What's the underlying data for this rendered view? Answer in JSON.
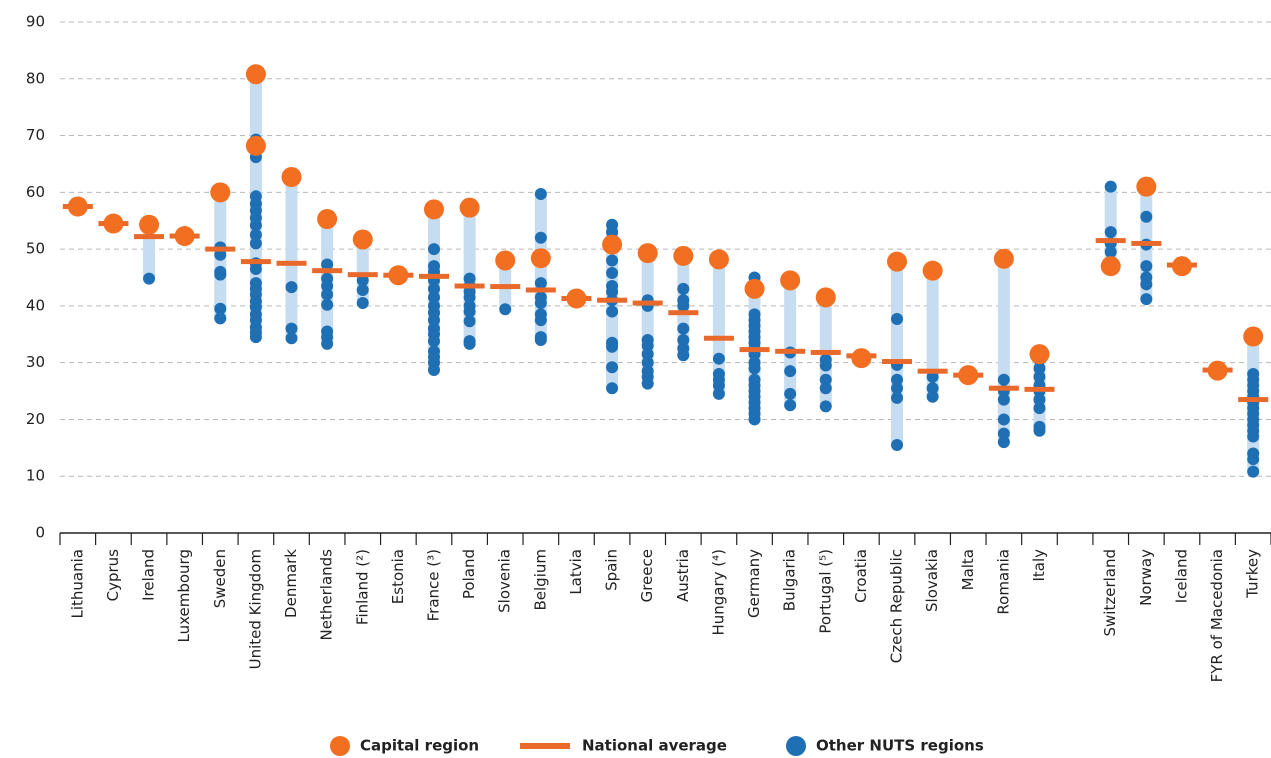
{
  "chart_data": {
    "type": "range-dot",
    "categories": [
      "Lithuania",
      "Cyprus",
      "Ireland",
      "Luxembourg",
      "Sweden",
      "United Kingdom",
      "Denmark",
      "Netherlands",
      "Finland (²)",
      "Estonia",
      "France (³)",
      "Poland",
      "Slovenia",
      "Belgium",
      "Latvia",
      "Spain",
      "Greece",
      "Austria",
      "Hungary (⁴)",
      "Germany",
      "Bulgaria",
      "Portugal (⁵)",
      "Croatia",
      "Czech Republic",
      "Slovakia",
      "Malta",
      "Romania",
      "Italy",
      null,
      "Switzerland",
      "Norway",
      "Iceland",
      "FYR of Macedonia",
      "Turkey"
    ],
    "series": [
      {
        "name": "Capital region",
        "color": "#f26f21",
        "values": [
          [
            57.5
          ],
          [
            54.5
          ],
          [
            54.3
          ],
          [
            52.3
          ],
          [
            60.0
          ],
          [
            80.8,
            68.2
          ],
          [
            62.7
          ],
          [
            55.3
          ],
          [
            51.7
          ],
          [
            45.4
          ],
          [
            57.0
          ],
          [
            57.3
          ],
          [
            48.0
          ],
          [
            48.4
          ],
          [
            41.3
          ],
          [
            50.8
          ],
          [
            49.3
          ],
          [
            48.8
          ],
          [
            48.2
          ],
          [
            43.0
          ],
          [
            44.5
          ],
          [
            41.5
          ],
          [
            30.8
          ],
          [
            47.8
          ],
          [
            46.2
          ],
          [
            27.8
          ],
          [
            48.3
          ],
          [
            31.5
          ],
          null,
          [
            47.0
          ],
          [
            61.0
          ],
          [
            47.0
          ],
          [
            28.6
          ],
          [
            34.6
          ]
        ]
      },
      {
        "name": "National average",
        "color": "#e8692a",
        "values": [
          57.5,
          54.5,
          52.2,
          52.3,
          50.0,
          47.8,
          47.5,
          46.2,
          45.5,
          45.4,
          45.2,
          43.5,
          43.4,
          42.8,
          41.3,
          41.0,
          40.5,
          38.8,
          34.3,
          32.3,
          32.0,
          31.8,
          31.2,
          30.2,
          28.5,
          27.8,
          25.5,
          25.3,
          null,
          51.5,
          51.0,
          47.2,
          28.7,
          23.5
        ]
      },
      {
        "name": "Other NUTS regions",
        "color": "#1f6fb5",
        "values": [
          [],
          [],
          [
            44.8
          ],
          [],
          [
            50.3,
            49.0,
            46.0,
            45.5,
            39.5,
            37.8
          ],
          [
            69.3,
            66.2,
            59.3,
            58.0,
            56.8,
            55.5,
            54.2,
            52.5,
            51.0,
            47.5,
            46.5,
            44.0,
            43.0,
            42.0,
            40.8,
            39.8,
            38.5,
            37.5,
            36.2,
            35.3,
            34.5
          ],
          [
            43.3,
            36.0,
            34.3
          ],
          [
            55.8,
            47.3,
            44.8,
            43.5,
            42.0,
            40.2,
            35.5,
            34.5,
            33.3
          ],
          [
            44.5,
            42.8,
            40.5
          ],
          [],
          [
            50.0,
            47.0,
            46.0,
            44.5,
            43.0,
            41.5,
            40.0,
            38.8,
            37.5,
            36.0,
            35.0,
            33.8,
            32.0,
            31.0,
            30.0,
            28.7
          ],
          [
            44.8,
            43.5,
            42.5,
            41.5,
            40.0,
            39.0,
            37.3,
            33.8,
            33.3
          ],
          [
            39.4
          ],
          [
            59.7,
            52.0,
            44.0,
            41.5,
            40.5,
            38.5,
            37.5,
            34.5,
            34.0
          ],
          [],
          [
            54.3,
            53.0,
            48.0,
            45.8,
            43.5,
            42.5,
            41.0,
            39.0,
            33.5,
            32.8,
            29.2,
            25.5
          ],
          [
            41.0,
            40.0,
            34.0,
            33.0,
            31.5,
            30.0,
            28.5,
            27.5,
            26.3
          ],
          [
            43.0,
            41.0,
            40.0,
            36.0,
            34.0,
            32.5,
            31.3
          ],
          [
            30.7,
            28.0,
            27.0,
            26.0,
            24.5
          ],
          [
            45.0,
            44.0,
            38.5,
            37.5,
            36.5,
            35.5,
            34.5,
            33.5,
            32.5,
            31.5,
            30.0,
            29.0,
            27.0,
            26.0,
            25.0,
            24.0,
            23.0,
            22.0,
            21.0,
            20.0
          ],
          [
            31.8,
            28.5,
            24.5,
            22.5
          ],
          [
            30.5,
            29.5,
            27.0,
            25.5,
            22.3
          ],
          [
            31.3
          ],
          [
            37.7,
            29.6,
            27.0,
            25.5,
            23.8,
            15.5
          ],
          [
            27.5,
            25.5,
            24.0
          ],
          [],
          [
            27.0,
            25.0,
            23.5,
            20.0,
            17.5,
            16.0
          ],
          [
            32.0,
            30.5,
            29.0,
            27.5,
            26.0,
            25.0,
            23.5,
            22.0,
            18.7,
            18.0
          ],
          null,
          [
            61.0,
            53.0,
            51.0,
            49.5
          ],
          [
            55.7,
            50.8,
            47.0,
            45.0,
            43.8,
            41.2
          ],
          [],
          [],
          [
            28.0,
            27.0,
            26.0,
            25.0,
            24.0,
            23.0,
            22.0,
            21.0,
            20.0,
            19.0,
            18.0,
            17.0,
            14.0,
            13.0,
            10.8
          ]
        ]
      }
    ],
    "range_color": "#c6dcf1",
    "ylim": [
      0,
      90
    ],
    "yticks": [
      0,
      10,
      20,
      30,
      40,
      50,
      60,
      70,
      80,
      90
    ],
    "grid": true
  }
}
